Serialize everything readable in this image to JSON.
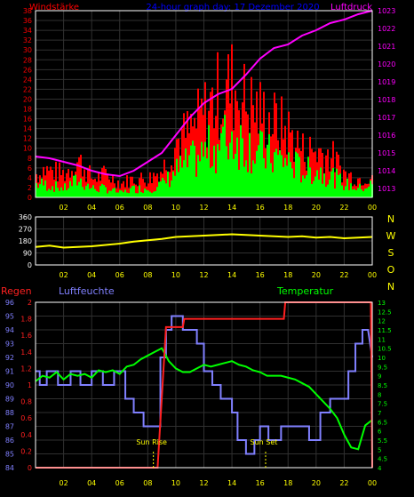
{
  "colors": {
    "wind_gust": "#ff0000",
    "wind_avg": "#00ff00",
    "pressure": "#ff00ff",
    "direction": "#ffff00",
    "rain": "#ff2020",
    "humidity": "#8080ff",
    "temperature": "#00ff00",
    "grid": "#303030",
    "axis_box": "#ffffff"
  },
  "chart_data": [
    {
      "type": "bar",
      "title": "24-hour graph day: 17 Dezember 2020",
      "left_label": "Windstärke",
      "right_label": "Luftdruck",
      "x_ticks": [
        "02",
        "04",
        "06",
        "08",
        "10",
        "12",
        "14",
        "16",
        "18",
        "20",
        "22",
        "00"
      ],
      "y_left_ticks": [
        "0",
        "2",
        "4",
        "6",
        "8",
        "10",
        "12",
        "14",
        "16",
        "18",
        "20",
        "22",
        "24",
        "26",
        "28",
        "30",
        "32",
        "34",
        "36",
        "38"
      ],
      "y_right_ticks": [
        "1013",
        "1014",
        "1015",
        "1016",
        "1017",
        "1018",
        "1019",
        "1020",
        "1021",
        "1022",
        "1023"
      ],
      "ylim_left": [
        0,
        38
      ],
      "ylim_right": [
        1012.5,
        1023
      ],
      "series": [
        {
          "name": "Windstärke",
          "x": [
            0.5,
            2,
            3,
            4,
            5,
            6,
            7,
            8,
            9,
            10,
            11,
            12,
            13,
            14,
            15,
            16,
            17,
            18,
            19,
            20,
            21,
            22,
            23,
            24
          ],
          "values": [
            6,
            5,
            8,
            4,
            5,
            3,
            4,
            4,
            6,
            12,
            14,
            18,
            22,
            24,
            20,
            18,
            16,
            14,
            10,
            10,
            9,
            5,
            4,
            5
          ]
        },
        {
          "name": "Wind",
          "x": [
            0.5,
            2,
            3,
            4,
            5,
            6,
            7,
            8,
            9,
            10,
            11,
            12,
            13,
            14,
            15,
            16,
            17,
            18,
            19,
            20,
            21,
            22,
            23,
            24
          ],
          "values": [
            3,
            2,
            4,
            2,
            2,
            1,
            2,
            2,
            3,
            6,
            8,
            10,
            12,
            14,
            12,
            10,
            9,
            8,
            6,
            6,
            5,
            3,
            2,
            3
          ]
        },
        {
          "name": "Luftdruck",
          "x": [
            0,
            1,
            2,
            3,
            4,
            5,
            6,
            7,
            8,
            9,
            10,
            11,
            12,
            13,
            14,
            15,
            16,
            17,
            18,
            19,
            20,
            21,
            22,
            23,
            24
          ],
          "values": [
            1014.8,
            1014.7,
            1014.5,
            1014.3,
            1014.0,
            1013.8,
            1013.7,
            1014.0,
            1014.5,
            1015.0,
            1016.0,
            1017.0,
            1017.8,
            1018.3,
            1018.6,
            1019.4,
            1020.3,
            1020.9,
            1021.1,
            1021.6,
            1021.9,
            1022.3,
            1022.5,
            1022.8,
            1023.0
          ]
        }
      ]
    },
    {
      "type": "line",
      "right_axis_letters": [
        "N",
        "W",
        "S",
        "O",
        "N"
      ],
      "x_ticks": [
        "02",
        "04",
        "06",
        "08",
        "10",
        "12",
        "14",
        "16",
        "18",
        "20",
        "22",
        "00"
      ],
      "y_ticks": [
        "0",
        "90",
        "180",
        "270",
        "360"
      ],
      "ylim": [
        0,
        360
      ],
      "series": [
        {
          "name": "Windrichtung",
          "x": [
            0,
            1,
            2,
            3,
            4,
            5,
            6,
            7,
            8,
            9,
            10,
            11,
            12,
            13,
            14,
            15,
            16,
            17,
            18,
            19,
            20,
            21,
            22,
            23,
            24
          ],
          "values": [
            135,
            145,
            130,
            135,
            140,
            150,
            160,
            175,
            185,
            195,
            210,
            215,
            220,
            225,
            230,
            225,
            220,
            215,
            210,
            215,
            205,
            210,
            200,
            205,
            210
          ]
        }
      ]
    },
    {
      "type": "line",
      "rain_label": "Regen",
      "humidity_label": "Luftfeuchte",
      "temperature_label": "Temperatur",
      "sunrise_label": "Sun Rise",
      "sunset_label": "Sun Set",
      "sunrise_x": 8.4,
      "sunset_x": 16.4,
      "x_ticks": [
        "02",
        "04",
        "06",
        "08",
        "10",
        "12",
        "14",
        "16",
        "18",
        "20",
        "22",
        "00"
      ],
      "rain_ticks": [
        "0",
        "0.2",
        "0.4",
        "0.6",
        "0.8",
        "1",
        "1.2",
        "1.4",
        "1.6",
        "1.8",
        "2"
      ],
      "humidity_ticks": [
        "84",
        "85",
        "86",
        "87",
        "88",
        "89",
        "90",
        "91",
        "92",
        "93",
        "94",
        "95",
        "96"
      ],
      "temperature_ticks": [
        "4",
        "4.5",
        "5",
        "5.5",
        "6",
        "6.5",
        "7",
        "7.5",
        "8",
        "8.5",
        "9",
        "9.5",
        "10",
        "10.5",
        "11",
        "11.5",
        "12",
        "12.5",
        "13"
      ],
      "ylim_rain": [
        0,
        2
      ],
      "ylim_humidity": [
        84,
        96
      ],
      "ylim_temperature": [
        4,
        13
      ],
      "series": [
        {
          "name": "Regen",
          "x": [
            0,
            8.7,
            9.3,
            10.5,
            10.6,
            17.7,
            17.8,
            23.9,
            24
          ],
          "values": [
            0,
            0,
            1.7,
            1.7,
            1.8,
            1.8,
            2.0,
            2.0,
            0
          ]
        },
        {
          "name": "Luftfeuchte",
          "x": [
            0,
            0.3,
            0.3,
            0.8,
            0.8,
            1.6,
            1.6,
            2.5,
            2.5,
            3.2,
            3.2,
            4.0,
            4.0,
            4.8,
            4.8,
            5.6,
            5.6,
            6.4,
            6.4,
            7.0,
            7.0,
            7.7,
            7.7,
            8.4,
            8.4,
            8.9,
            8.9,
            9.3,
            9.3,
            9.7,
            9.7,
            10.5,
            10.5,
            11.5,
            11.5,
            12.0,
            12.0,
            12.6,
            12.6,
            13.2,
            13.2,
            14.0,
            14.0,
            14.4,
            14.4,
            15.0,
            15.0,
            15.6,
            15.6,
            16.0,
            16.0,
            16.6,
            16.6,
            17.5,
            17.5,
            18.6,
            18.6,
            19.5,
            19.5,
            20.3,
            20.3,
            21.0,
            21.0,
            21.8,
            21.8,
            22.3,
            22.3,
            22.8,
            22.8,
            23.3,
            23.3,
            23.7,
            24
          ],
          "values": [
            91,
            91,
            90,
            90,
            91,
            91,
            90,
            90,
            91,
            91,
            90,
            90,
            91,
            91,
            90,
            90,
            91,
            91,
            89,
            89,
            88,
            88,
            87,
            87,
            87,
            87,
            92,
            92,
            94,
            94,
            95,
            95,
            94,
            94,
            93,
            93,
            91,
            91,
            90,
            90,
            89,
            89,
            88,
            88,
            86,
            86,
            85,
            85,
            86,
            86,
            87,
            87,
            86,
            86,
            87,
            87,
            87,
            87,
            86,
            86,
            88,
            88,
            89,
            89,
            89,
            89,
            91,
            91,
            93,
            93,
            94,
            94,
            92
          ]
        },
        {
          "name": "Temperatur",
          "x": [
            0,
            0.5,
            1,
            1.5,
            2,
            2.5,
            3,
            3.5,
            4,
            4.5,
            5,
            5.5,
            6,
            6.5,
            7,
            7.5,
            8,
            8.5,
            9,
            9.5,
            10,
            10.5,
            11,
            11.5,
            12,
            12.5,
            13,
            13.5,
            14,
            14.5,
            15,
            15.5,
            16,
            16.5,
            17,
            17.5,
            18,
            18.5,
            19,
            19.5,
            20,
            20.5,
            21,
            21.5,
            22,
            22.5,
            23,
            23.5,
            24
          ],
          "values": [
            8.7,
            9.0,
            8.9,
            9.2,
            8.8,
            9.1,
            9.0,
            9.1,
            8.9,
            9.3,
            9.2,
            9.3,
            9.1,
            9.5,
            9.6,
            9.9,
            10.1,
            10.3,
            10.5,
            9.8,
            9.4,
            9.2,
            9.2,
            9.4,
            9.6,
            9.5,
            9.6,
            9.7,
            9.8,
            9.6,
            9.5,
            9.3,
            9.2,
            9.0,
            9.0,
            9.0,
            8.9,
            8.8,
            8.6,
            8.4,
            8.0,
            7.6,
            7.2,
            6.7,
            5.8,
            5.1,
            5.0,
            6.3,
            6.6
          ]
        }
      ]
    }
  ]
}
